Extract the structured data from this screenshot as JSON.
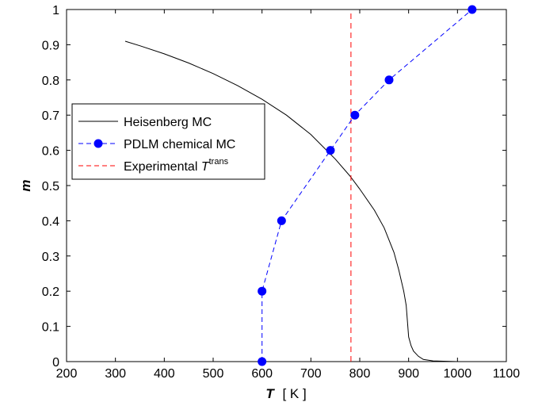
{
  "chart_data": {
    "type": "line",
    "xlabel_symbol": "T",
    "xlabel_unit": "[ K ]",
    "ylabel": "m",
    "xlim": [
      200,
      1100
    ],
    "ylim": [
      0,
      1
    ],
    "xticks": [
      200,
      300,
      400,
      500,
      600,
      700,
      800,
      900,
      1000,
      1100
    ],
    "yticks": [
      0,
      0.1,
      0.2,
      0.3,
      0.4,
      0.5,
      0.6,
      0.7,
      0.8,
      0.9,
      1
    ],
    "grid": false,
    "legend_position": "center-left",
    "series": [
      {
        "name": "Heisenberg MC",
        "style": "solid",
        "color": "#000000",
        "x": [
          320,
          350,
          400,
          450,
          500,
          550,
          600,
          650,
          700,
          750,
          780,
          800,
          830,
          850,
          870,
          880,
          890,
          895,
          900,
          905,
          910,
          920,
          930,
          950,
          1000,
          1050
        ],
        "y": [
          0.91,
          0.897,
          0.874,
          0.848,
          0.818,
          0.784,
          0.745,
          0.7,
          0.645,
          0.575,
          0.527,
          0.49,
          0.43,
          0.38,
          0.31,
          0.26,
          0.2,
          0.16,
          0.07,
          0.045,
          0.03,
          0.015,
          0.006,
          0.002,
          0.0,
          0.0
        ]
      },
      {
        "name": "PDLM chemical MC",
        "style": "dashed-markers",
        "color": "#0000ff",
        "x": [
          600,
          600,
          640,
          740,
          790,
          860,
          1030
        ],
        "y": [
          0.0,
          0.2,
          0.4,
          0.6,
          0.7,
          0.8,
          1.0
        ]
      },
      {
        "name_main": "Experimental ",
        "name_symbol": "T",
        "name_sup": "trans",
        "style": "dashed",
        "color": "#ff0000",
        "x": [
          782,
          782
        ],
        "y": [
          0,
          1
        ]
      }
    ]
  }
}
